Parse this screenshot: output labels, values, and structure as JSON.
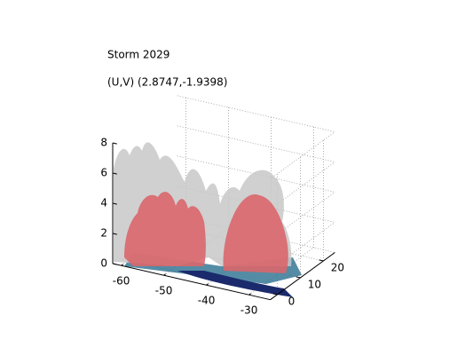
{
  "chart_data": {
    "type": "surface3d",
    "title": "Storm 2029",
    "subtitle": "(U,V) (2.8747,-1.9398)",
    "xlim": [
      -62,
      -25
    ],
    "xticks": [
      -60,
      -50,
      -40,
      -30
    ],
    "ylim": [
      -3,
      25
    ],
    "yticks": [
      0,
      10,
      20
    ],
    "zlim": [
      0,
      8
    ],
    "zticks": [
      0,
      2,
      4,
      6,
      8
    ],
    "grid": true
  }
}
